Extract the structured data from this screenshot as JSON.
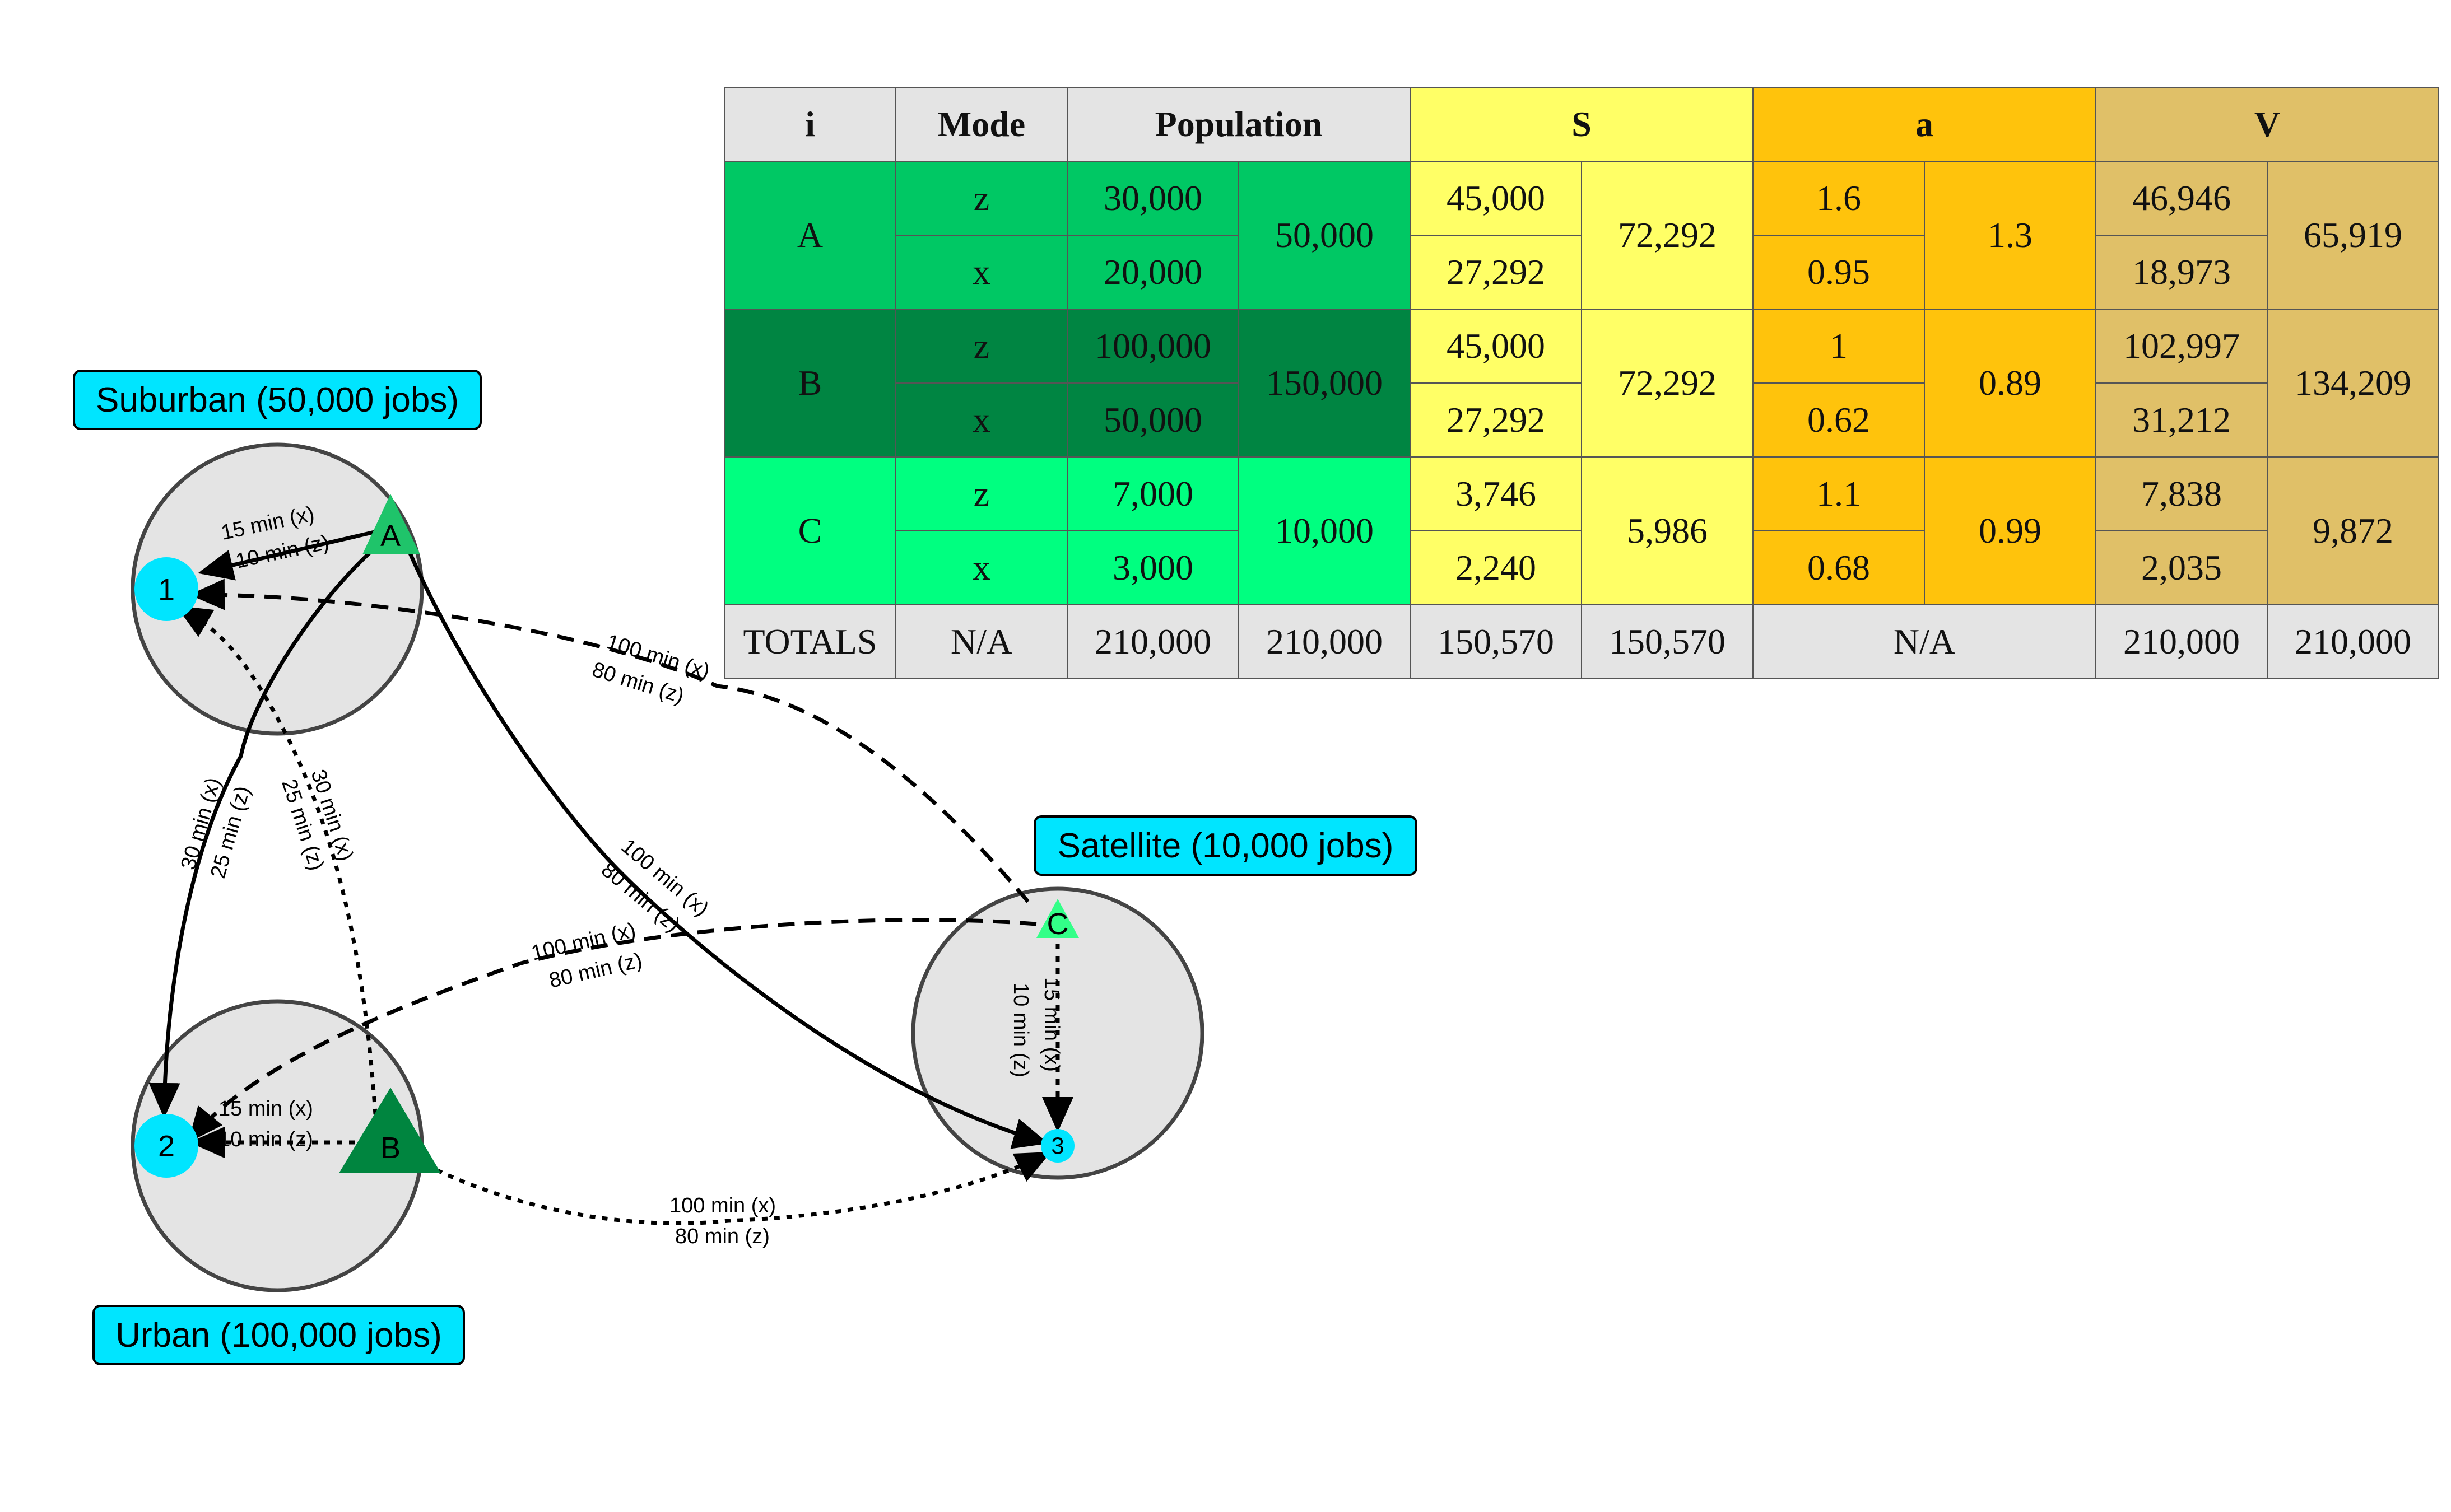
{
  "zones": {
    "suburban_label": "Suburban (50,000 jobs)",
    "urban_label": "Urban (100,000 jobs)",
    "satellite_label": "Satellite (10,000 jobs)"
  },
  "nodes": {
    "job_1": "1",
    "job_2": "2",
    "job_3": "3",
    "home_A": "A",
    "home_B": "B",
    "home_C": "C"
  },
  "edges": {
    "a_1": [
      "15 min (x)",
      "10 min (z)"
    ],
    "b_2": [
      "15 min (x)",
      "10 min (z)"
    ],
    "c_3": [
      "15 min (x)",
      "10 min (z)"
    ],
    "a_2": [
      "30 min (x)",
      "25 min (z)"
    ],
    "b_1": [
      "30 min (x)",
      "25 min (z)"
    ],
    "c_1": [
      "100 min (x)",
      "80 min (z)"
    ],
    "a_3": [
      "100 min (x)",
      "80 min (z)"
    ],
    "c_2": [
      "100 min (x)",
      "80 min (z)"
    ],
    "b_3": [
      "100 min (x)",
      "80 min (z)"
    ]
  },
  "table": {
    "headers": {
      "i": "i",
      "mode": "Mode",
      "population": "Population",
      "s": "S",
      "a": "a",
      "v": "V"
    },
    "rows": [
      {
        "i": "A",
        "pop_total": "50,000",
        "s_total": "72,292",
        "a_total": "1.3",
        "v_total": "65,919",
        "modes": [
          {
            "mode": "z",
            "pop": "30,000",
            "s": "45,000",
            "a": "1.6",
            "v": "46,946"
          },
          {
            "mode": "x",
            "pop": "20,000",
            "s": "27,292",
            "a": "0.95",
            "v": "18,973"
          }
        ]
      },
      {
        "i": "B",
        "pop_total": "150,000",
        "s_total": "72,292",
        "a_total": "0.89",
        "v_total": "134,209",
        "modes": [
          {
            "mode": "z",
            "pop": "100,000",
            "s": "45,000",
            "a": "1",
            "v": "102,997"
          },
          {
            "mode": "x",
            "pop": "50,000",
            "s": "27,292",
            "a": "0.62",
            "v": "31,212"
          }
        ]
      },
      {
        "i": "C",
        "pop_total": "10,000",
        "s_total": "5,986",
        "a_total": "0.99",
        "v_total": "9,872",
        "modes": [
          {
            "mode": "z",
            "pop": "7,000",
            "s": "3,746",
            "a": "1.1",
            "v": "7,838"
          },
          {
            "mode": "x",
            "pop": "3,000",
            "s": "2,240",
            "a": "0.68",
            "v": "2,035"
          }
        ]
      }
    ],
    "totals": {
      "label": "TOTALS",
      "mode": "N/A",
      "pop1": "210,000",
      "pop2": "210,000",
      "s1": "150,570",
      "s2": "150,570",
      "a": "N/A",
      "v1": "210,000",
      "v2": "210,000"
    }
  },
  "colors": {
    "zone_fill": "#e4e4e4",
    "job_node": "#00e5ff",
    "home_A": "#1fc46a",
    "home_B": "#00853f",
    "home_C": "#33ff88"
  }
}
